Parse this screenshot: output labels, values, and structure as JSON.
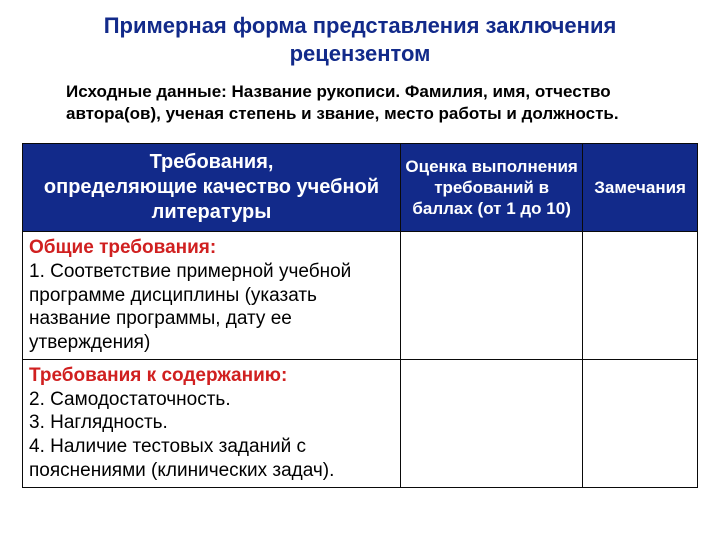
{
  "title_line1": "Примерная форма представления заключения",
  "title_line2": "рецензентом",
  "title_color": "#122a8a",
  "title_fontsize": 22,
  "subtitle": "Исходные данные: Название рукописи. Фамилия, имя, отчество автора(ов), ученая степень и звание, место работы и должность.",
  "subtitle_color": "#000000",
  "subtitle_fontsize": 17,
  "table": {
    "header_bg": "#122a8a",
    "header_fg": "#ffffff",
    "border_color": "#0a0a0a",
    "col_widths": [
      "56%",
      "27%",
      "17%"
    ],
    "headers": {
      "col1": "Требования,\nопределяющие качество учебной литературы",
      "col1_fontsize": 20,
      "col2": "Оценка выполнения требований в баллах (от 1 до 10)",
      "col2_fontsize": 17,
      "col3": "Замечания",
      "col3_fontsize": 17
    },
    "rows": [
      {
        "label": "Общие требования:",
        "label_color": "#d02020",
        "items": "1. Соответствие примерной учебной программе дисциплины (указать название программы, дату ее утверждения)",
        "items_color": "#000000",
        "fontsize": 19
      },
      {
        "label": "Требования к содержанию:",
        "label_color": "#d02020",
        "items": "2. Самодостаточность.\n3. Наглядность.\n4. Наличие тестовых заданий с пояснениями (клинических задач).",
        "items_color": "#000000",
        "fontsize": 19
      }
    ]
  }
}
